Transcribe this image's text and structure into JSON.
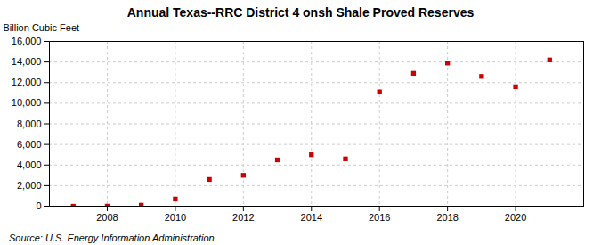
{
  "chart_data": {
    "type": "scatter",
    "title": "Annual Texas--RRC District 4 onsh Shale Proved Reserves",
    "ylabel": "Billion Cubic Feet",
    "source": "Source: U.S. Energy Information Administration",
    "x": [
      2007,
      2008,
      2009,
      2010,
      2011,
      2012,
      2013,
      2014,
      2015,
      2016,
      2017,
      2018,
      2019,
      2020,
      2021
    ],
    "values": [
      0,
      5,
      100,
      700,
      2600,
      3000,
      4500,
      5000,
      4600,
      11100,
      12900,
      13900,
      12600,
      11600,
      14200
    ],
    "color": "#cc0000",
    "marker": "square",
    "xlim": [
      2006.3,
      2022.0
    ],
    "xticks": [
      2008,
      2010,
      2012,
      2014,
      2016,
      2018,
      2020
    ],
    "ylim": [
      0,
      16000
    ],
    "yticks": [
      0,
      {
        "value": 2000,
        "label": "2,000"
      },
      {
        "value": 4000,
        "label": "4,000"
      },
      {
        "value": 6000,
        "label": "6,000"
      },
      {
        "value": 8000,
        "label": "8,000"
      },
      {
        "value": 10000,
        "label": "10,000"
      },
      {
        "value": 12000,
        "label": "12,000"
      },
      {
        "value": 14000,
        "label": "14,000"
      },
      {
        "value": 16000,
        "label": "16,000"
      }
    ],
    "grid": true
  }
}
